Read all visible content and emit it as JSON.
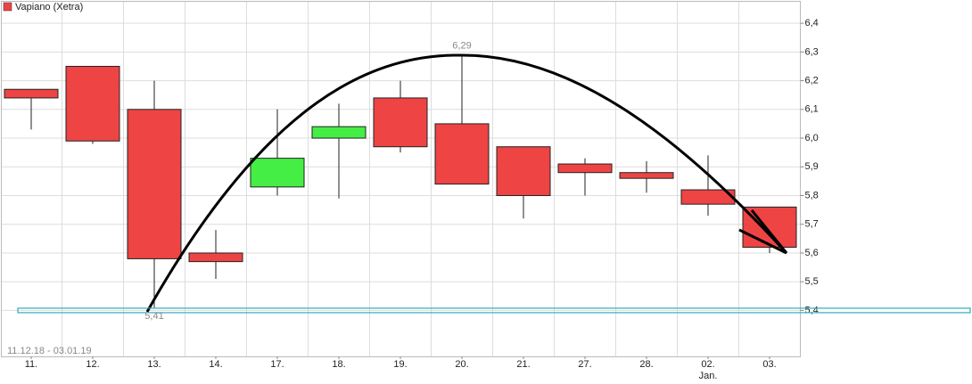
{
  "chart_data": {
    "type": "candlestick",
    "categories": [
      "11.",
      "12.",
      "13.",
      "14.",
      "17.",
      "18.",
      "19.",
      "20.",
      "21.",
      "27.",
      "28.",
      "02.",
      "03."
    ],
    "x_sublabels": [
      null,
      null,
      null,
      null,
      null,
      null,
      null,
      null,
      null,
      null,
      null,
      "Jan.",
      null
    ],
    "date_range": "11.12.18 - 03.01.19",
    "series": [
      {
        "name": "Vapiano (Xetra)",
        "color": "#ee4444",
        "up_color": "#44ee44",
        "down_color": "#ee4444",
        "open": [
          6.17,
          6.25,
          6.1,
          5.6,
          5.83,
          6.0,
          6.14,
          6.05,
          5.97,
          5.91,
          5.88,
          5.82,
          5.76
        ],
        "high": [
          6.17,
          6.25,
          6.2,
          5.68,
          6.1,
          6.12,
          6.2,
          6.29,
          5.97,
          5.93,
          5.92,
          5.94,
          5.76
        ],
        "low": [
          6.03,
          5.98,
          5.41,
          5.51,
          5.8,
          5.79,
          5.95,
          5.84,
          5.72,
          5.8,
          5.81,
          5.73,
          5.6
        ],
        "close": [
          6.14,
          5.99,
          5.58,
          5.57,
          5.93,
          6.04,
          5.97,
          5.84,
          5.8,
          5.88,
          5.86,
          5.77,
          5.62
        ]
      }
    ],
    "annotations": [
      {
        "label": "6,29",
        "value": 6.29
      },
      {
        "label": "5,41",
        "value": 5.41
      }
    ],
    "support_level": 5.4,
    "support_color": "#33aabb",
    "ylim": [
      5.24,
      6.45
    ],
    "yticks": [
      {
        "value": 5.4,
        "label": "5,4"
      },
      {
        "value": 5.5,
        "label": "5,5"
      },
      {
        "value": 5.6,
        "label": "5,6"
      },
      {
        "value": 5.7,
        "label": "5,7"
      },
      {
        "value": 5.8,
        "label": "5,8"
      },
      {
        "value": 5.9,
        "label": "5,9"
      },
      {
        "value": 6.0,
        "label": "6,0"
      },
      {
        "value": 6.1,
        "label": "6,1"
      },
      {
        "value": 6.2,
        "label": "6,2"
      },
      {
        "value": 6.3,
        "label": "6,3"
      },
      {
        "value": 6.4,
        "label": "6,4"
      }
    ],
    "grid": true
  }
}
